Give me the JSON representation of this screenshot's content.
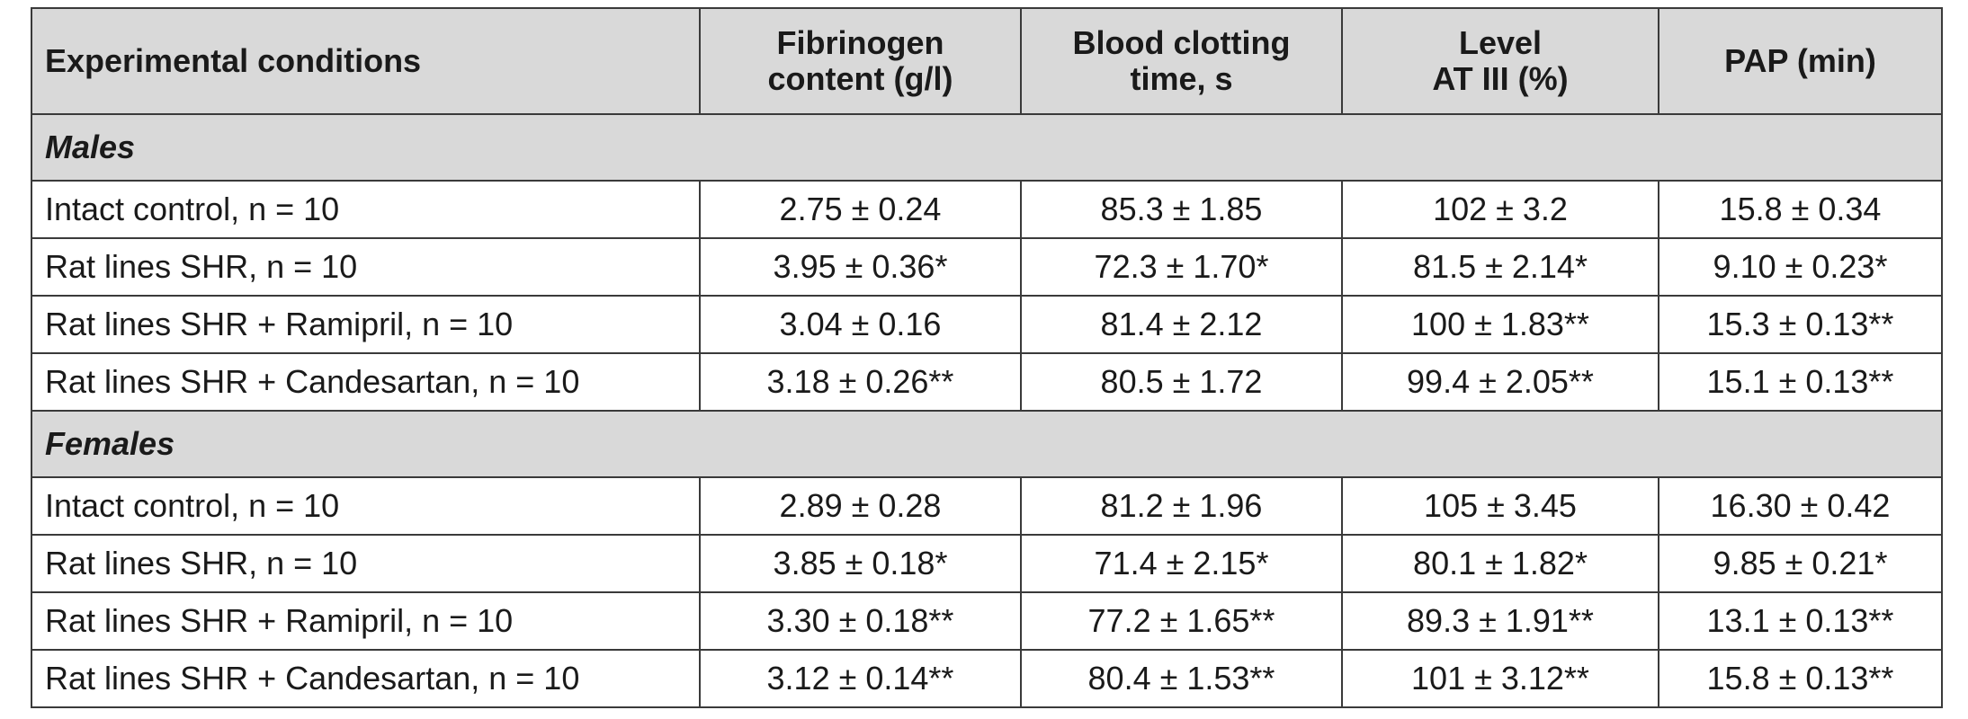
{
  "table": {
    "headers": [
      {
        "lines": [
          "Experimental conditions"
        ]
      },
      {
        "lines": [
          "Fibrinogen",
          "content (g/l)"
        ]
      },
      {
        "lines": [
          "Blood clotting",
          "time, s"
        ]
      },
      {
        "lines": [
          "Level",
          "AT III (%)"
        ]
      },
      {
        "lines": [
          "PAP (min)"
        ]
      }
    ],
    "groups": [
      {
        "title": "Males",
        "rows": [
          [
            "Intact control, n = 10",
            "2.75 ± 0.24",
            "85.3 ± 1.85",
            "102 ± 3.2",
            "15.8 ± 0.34"
          ],
          [
            "Rat lines SHR, n = 10",
            "3.95 ± 0.36*",
            "72.3 ± 1.70*",
            "81.5 ± 2.14*",
            "9.10 ± 0.23*"
          ],
          [
            "Rat lines SHR + Ramipril, n = 10",
            "3.04 ± 0.16",
            "81.4 ± 2.12",
            "100 ± 1.83**",
            "15.3 ± 0.13**"
          ],
          [
            "Rat lines SHR + Candesartan, n = 10",
            "3.18 ± 0.26**",
            "80.5 ± 1.72",
            "99.4 ± 2.05**",
            "15.1 ± 0.13**"
          ]
        ]
      },
      {
        "title": "Females",
        "rows": [
          [
            "Intact control, n = 10",
            "2.89 ± 0.28",
            "81.2 ± 1.96",
            "105 ± 3.45",
            "16.30 ± 0.42"
          ],
          [
            "Rat lines SHR, n = 10",
            "3.85 ± 0.18*",
            "71.4 ± 2.15*",
            "80.1 ± 1.82*",
            "9.85 ± 0.21*"
          ],
          [
            "Rat lines SHR + Ramipril, n = 10",
            "3.30 ± 0.18**",
            "77.2 ± 1.65**",
            "89.3 ± 1.91**",
            "13.1 ± 0.13**"
          ],
          [
            "Rat lines SHR + Candesartan, n = 10",
            "3.12 ± 0.14**",
            "80.4 ± 1.53**",
            "101 ± 3.12**",
            "15.8 ± 0.13**"
          ]
        ]
      }
    ]
  }
}
